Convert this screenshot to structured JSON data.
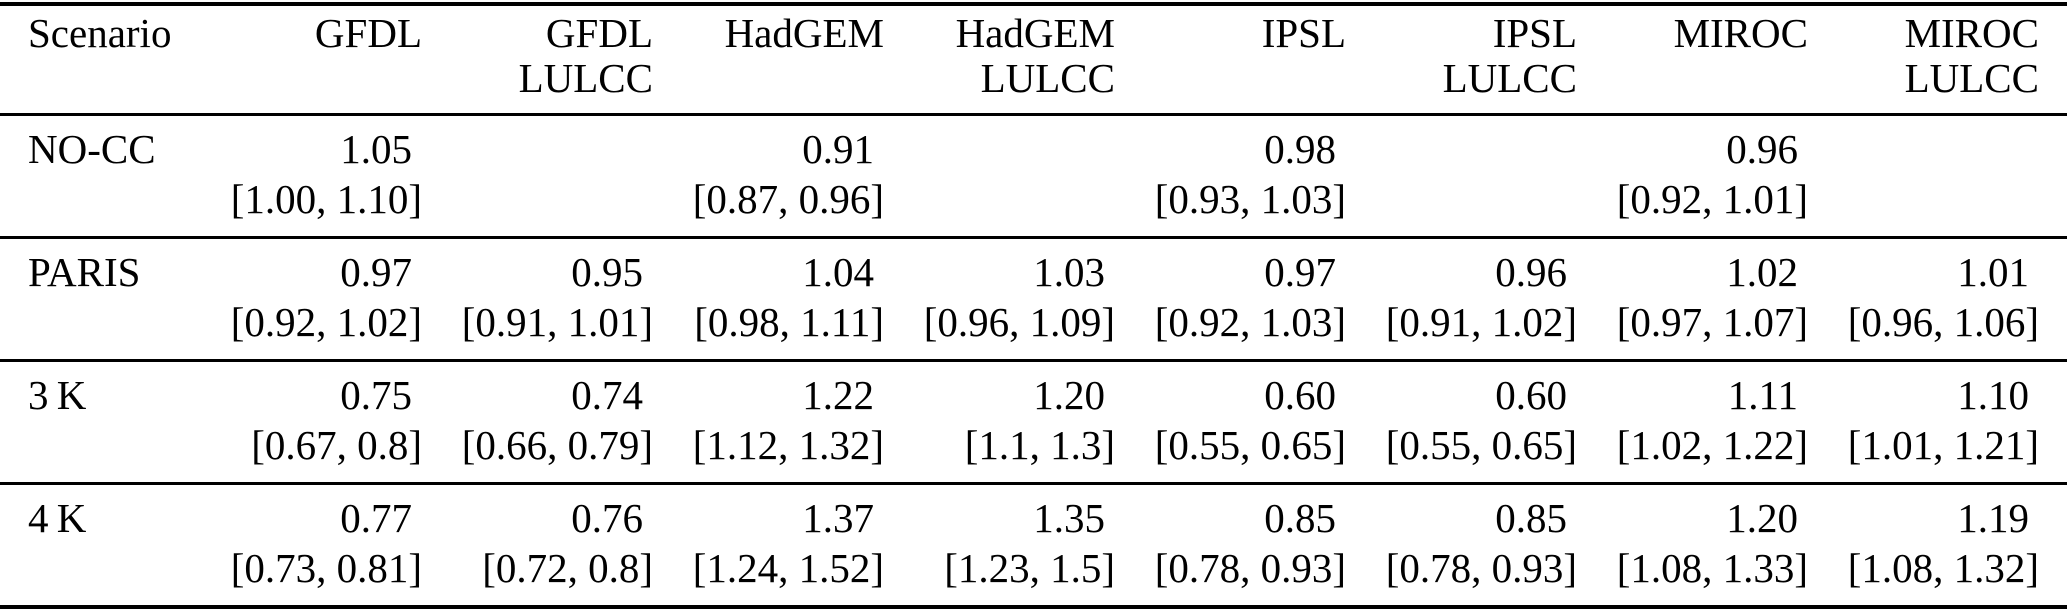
{
  "colors": {
    "text": "#000000",
    "background": "#ffffff",
    "rule": "#000000"
  },
  "table": {
    "header": {
      "scenario_label": "Scenario",
      "columns": [
        {
          "line1": "GFDL",
          "line2": ""
        },
        {
          "line1": "GFDL",
          "line2": "LULCC"
        },
        {
          "line1": "HadGEM",
          "line2": ""
        },
        {
          "line1": "HadGEM",
          "line2": "LULCC"
        },
        {
          "line1": "IPSL",
          "line2": ""
        },
        {
          "line1": "IPSL",
          "line2": "LULCC"
        },
        {
          "line1": "MIROC",
          "line2": ""
        },
        {
          "line1": "MIROC",
          "line2": "LULCC"
        }
      ]
    },
    "rows": [
      {
        "scenario": "NO-CC",
        "cells": [
          {
            "value": "1.05",
            "interval": "[1.00, 1.10]"
          },
          {
            "value": "",
            "interval": ""
          },
          {
            "value": "0.91",
            "interval": "[0.87, 0.96]"
          },
          {
            "value": "",
            "interval": ""
          },
          {
            "value": "0.98",
            "interval": "[0.93, 1.03]"
          },
          {
            "value": "",
            "interval": ""
          },
          {
            "value": "0.96",
            "interval": "[0.92, 1.01]"
          },
          {
            "value": "",
            "interval": ""
          }
        ]
      },
      {
        "scenario": "PARIS",
        "cells": [
          {
            "value": "0.97",
            "interval": "[0.92, 1.02]"
          },
          {
            "value": "0.95",
            "interval": "[0.91, 1.01]"
          },
          {
            "value": "1.04",
            "interval": "[0.98, 1.11]"
          },
          {
            "value": "1.03",
            "interval": "[0.96, 1.09]"
          },
          {
            "value": "0.97",
            "interval": "[0.92, 1.03]"
          },
          {
            "value": "0.96",
            "interval": "[0.91, 1.02]"
          },
          {
            "value": "1.02",
            "interval": "[0.97, 1.07]"
          },
          {
            "value": "1.01",
            "interval": "[0.96, 1.06]"
          }
        ]
      },
      {
        "scenario": "3 K",
        "cells": [
          {
            "value": "0.75",
            "interval": "[0.67, 0.8]"
          },
          {
            "value": "0.74",
            "interval": "[0.66, 0.79]"
          },
          {
            "value": "1.22",
            "interval": "[1.12, 1.32]"
          },
          {
            "value": "1.20",
            "interval": "[1.1, 1.3]"
          },
          {
            "value": "0.60",
            "interval": "[0.55, 0.65]"
          },
          {
            "value": "0.60",
            "interval": "[0.55, 0.65]"
          },
          {
            "value": "1.11",
            "interval": "[1.02, 1.22]"
          },
          {
            "value": "1.10",
            "interval": "[1.01, 1.21]"
          }
        ]
      },
      {
        "scenario": "4 K",
        "cells": [
          {
            "value": "0.77",
            "interval": "[0.73, 0.81]"
          },
          {
            "value": "0.76",
            "interval": "[0.72, 0.8]"
          },
          {
            "value": "1.37",
            "interval": "[1.24, 1.52]"
          },
          {
            "value": "1.35",
            "interval": "[1.23, 1.5]"
          },
          {
            "value": "0.85",
            "interval": "[0.78, 0.93]"
          },
          {
            "value": "0.85",
            "interval": "[0.78, 0.93]"
          },
          {
            "value": "1.20",
            "interval": "[1.08, 1.33]"
          },
          {
            "value": "1.19",
            "interval": "[1.08, 1.32]"
          }
        ]
      }
    ]
  },
  "chart_data": {
    "type": "table",
    "title": "",
    "row_header": "Scenario",
    "columns": [
      "GFDL",
      "GFDL LULCC",
      "HadGEM",
      "HadGEM LULCC",
      "IPSL",
      "IPSL LULCC",
      "MIROC",
      "MIROC LULCC"
    ],
    "rows": [
      "NO-CC",
      "PARIS",
      "3 K",
      "4 K"
    ],
    "values": [
      [
        1.05,
        null,
        0.91,
        null,
        0.98,
        null,
        0.96,
        null
      ],
      [
        0.97,
        0.95,
        1.04,
        1.03,
        0.97,
        0.96,
        1.02,
        1.01
      ],
      [
        0.75,
        0.74,
        1.22,
        1.2,
        0.6,
        0.6,
        1.11,
        1.1
      ],
      [
        0.77,
        0.76,
        1.37,
        1.35,
        0.85,
        0.85,
        1.2,
        1.19
      ]
    ],
    "intervals": [
      [
        [
          1.0,
          1.1
        ],
        null,
        [
          0.87,
          0.96
        ],
        null,
        [
          0.93,
          1.03
        ],
        null,
        [
          0.92,
          1.01
        ],
        null
      ],
      [
        [
          0.92,
          1.02
        ],
        [
          0.91,
          1.01
        ],
        [
          0.98,
          1.11
        ],
        [
          0.96,
          1.09
        ],
        [
          0.92,
          1.03
        ],
        [
          0.91,
          1.02
        ],
        [
          0.97,
          1.07
        ],
        [
          0.96,
          1.06
        ]
      ],
      [
        [
          0.67,
          0.8
        ],
        [
          0.66,
          0.79
        ],
        [
          1.12,
          1.32
        ],
        [
          1.1,
          1.3
        ],
        [
          0.55,
          0.65
        ],
        [
          0.55,
          0.65
        ],
        [
          1.02,
          1.22
        ],
        [
          1.01,
          1.21
        ]
      ],
      [
        [
          0.73,
          0.81
        ],
        [
          0.72,
          0.8
        ],
        [
          1.24,
          1.52
        ],
        [
          1.23,
          1.5
        ],
        [
          0.78,
          0.93
        ],
        [
          0.78,
          0.93
        ],
        [
          1.08,
          1.33
        ],
        [
          1.08,
          1.32
        ]
      ]
    ]
  }
}
